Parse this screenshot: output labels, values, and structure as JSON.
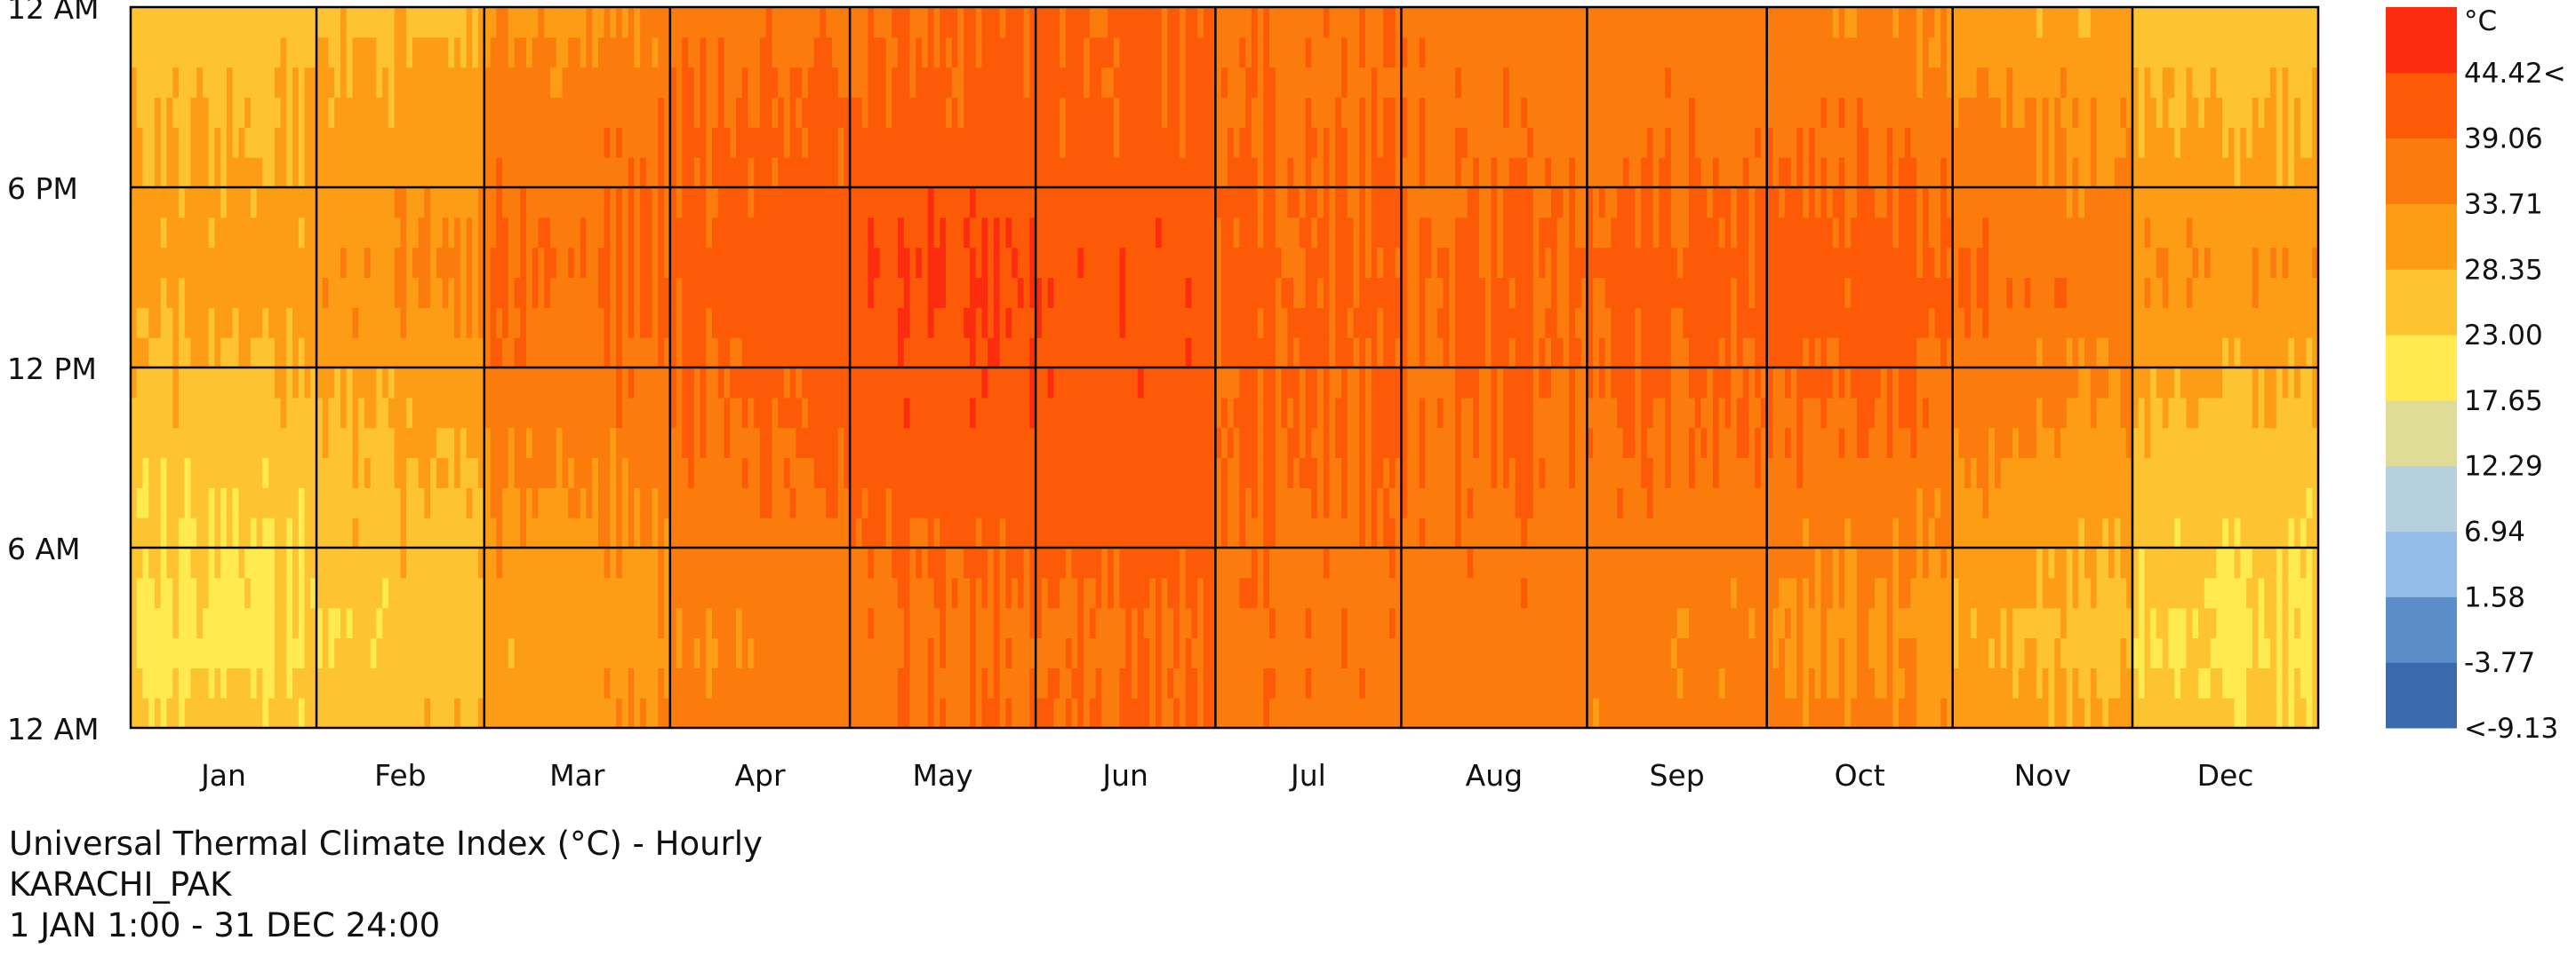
{
  "chart_data": {
    "type": "heatmap",
    "title": "Universal Thermal Climate Index (°C) - Hourly",
    "subtitle": "KARACHI_PAK",
    "period": "1 JAN 1:00 - 31 DEC 24:00",
    "x_categories": [
      "Jan",
      "Feb",
      "Mar",
      "Apr",
      "May",
      "Jun",
      "Jul",
      "Aug",
      "Sep",
      "Oct",
      "Nov",
      "Dec"
    ],
    "month_days": [
      31,
      28,
      31,
      30,
      31,
      30,
      31,
      31,
      30,
      31,
      30,
      31
    ],
    "y_tick_labels": [
      "12 AM",
      "6 AM",
      "12 PM",
      "6 PM",
      "12 AM"
    ],
    "y_tick_hours": [
      0,
      6,
      12,
      18,
      24
    ],
    "y_range_hours": [
      0,
      24
    ],
    "grid": true,
    "legend": {
      "placement": "right",
      "unit": "°C",
      "tick_labels": [
        "44.42<",
        "39.06",
        "33.71",
        "28.35",
        "23.00",
        "17.65",
        "12.29",
        "6.94",
        "1.58",
        "-3.77",
        "<-9.13"
      ],
      "breaks": [
        -9.13,
        -3.77,
        1.58,
        6.94,
        12.29,
        17.65,
        23.0,
        28.35,
        33.71,
        39.06,
        44.42
      ],
      "colors": [
        "#3a6aad",
        "#5b8ec9",
        "#94bde9",
        "#b5cfdd",
        "#dedc96",
        "#ffea4f",
        "#fec331",
        "#fd9d15",
        "#fb7c0d",
        "#fc5a06",
        "#fc2d0f"
      ]
    },
    "monthly_mean_utci_by_period": {
      "period_hours": [
        "0-6",
        "6-12",
        "12-18",
        "18-24"
      ],
      "values": {
        "Jan": [
          16,
          19,
          25,
          22
        ],
        "Feb": [
          18,
          21,
          27,
          24
        ],
        "Mar": [
          24,
          29,
          34,
          30
        ],
        "Apr": [
          29,
          33,
          36,
          34
        ],
        "May": [
          32,
          36,
          39,
          35
        ],
        "Jun": [
          33,
          37,
          38,
          35
        ],
        "Jul": [
          32,
          34,
          35,
          33
        ],
        "Aug": [
          31,
          33,
          34,
          32
        ],
        "Sep": [
          30,
          33,
          35,
          32
        ],
        "Oct": [
          28,
          33,
          37,
          32
        ],
        "Nov": [
          23,
          29,
          34,
          28
        ],
        "Dec": [
          17,
          21,
          28,
          23
        ]
      }
    }
  }
}
